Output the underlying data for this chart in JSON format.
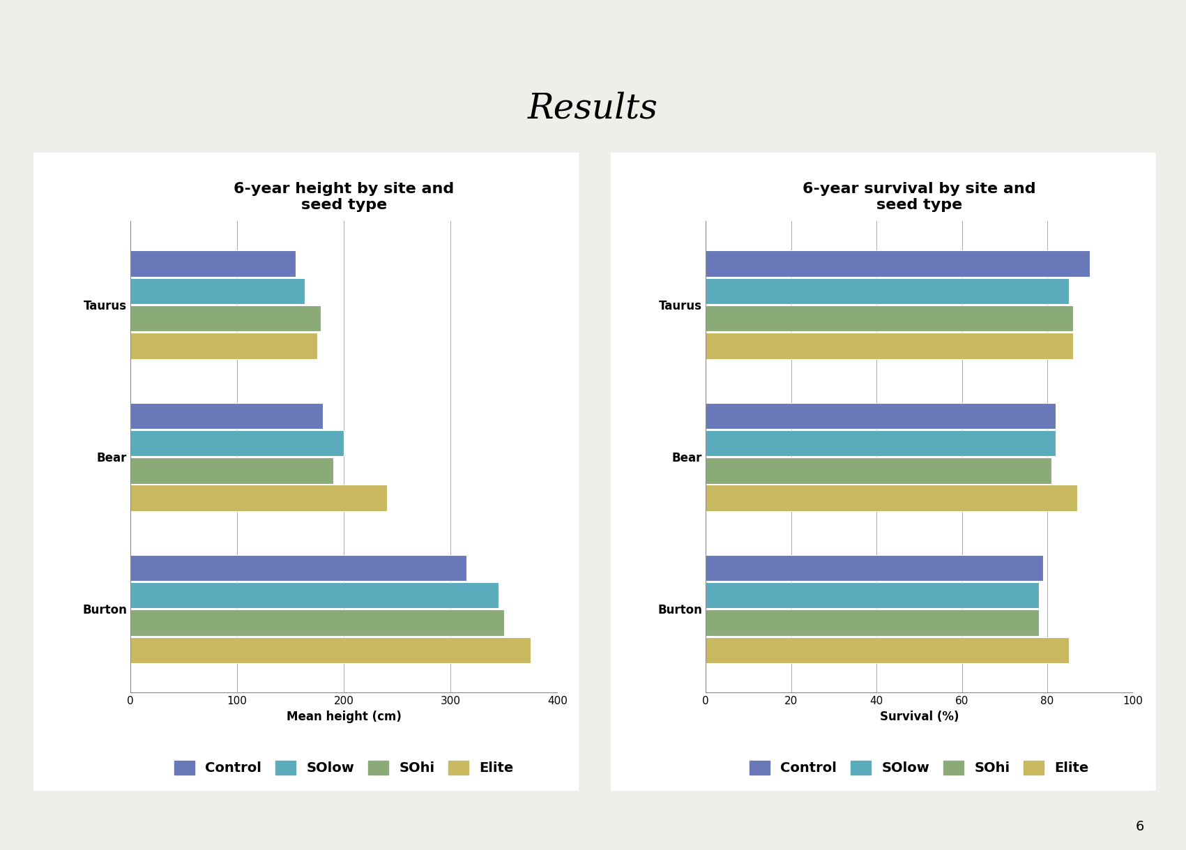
{
  "title_main": "Results",
  "title_top_bar_color": "#5a5a6a",
  "title_bg_color": "#b5a642",
  "slide_bg_color": "#f0eeeb",
  "panel_bg_color": "#ffffff",
  "panel_border_color": "#888888",
  "chart1_title": "6-year height by site and\nseed type",
  "chart1_xlabel": "Mean height (cm)",
  "chart1_xlim": [
    0,
    400
  ],
  "chart1_xticks": [
    0,
    100,
    200,
    300,
    400
  ],
  "chart1_sites": [
    "Taurus",
    "Bear",
    "Burton"
  ],
  "chart1_data": {
    "Control": [
      155,
      180,
      315
    ],
    "SOlow": [
      163,
      200,
      345
    ],
    "SOhi": [
      178,
      190,
      350
    ],
    "Elite": [
      175,
      240,
      375
    ]
  },
  "chart2_title": "6-year survival by site and\nseed type",
  "chart2_xlabel": "Survival (%)",
  "chart2_xlim": [
    0,
    100
  ],
  "chart2_xticks": [
    0,
    20,
    40,
    60,
    80,
    100
  ],
  "chart2_sites": [
    "Taurus",
    "Bear",
    "Burton"
  ],
  "chart2_data": {
    "Control": [
      90,
      82,
      79
    ],
    "SOlow": [
      85,
      82,
      78
    ],
    "SOhi": [
      86,
      81,
      78
    ],
    "Elite": [
      86,
      87,
      85
    ]
  },
  "colors": {
    "Control": "#6878b8",
    "SOlow": "#5aabbb",
    "SOhi": "#8aaa78",
    "Elite": "#c8b860"
  },
  "legend_order": [
    "Control",
    "SOlow",
    "SOhi",
    "Elite"
  ],
  "page_number": "6",
  "title_fontsize": 36,
  "chart_title_fontsize": 16,
  "axis_label_fontsize": 12,
  "tick_fontsize": 11,
  "site_label_fontsize": 12,
  "legend_fontsize": 14
}
